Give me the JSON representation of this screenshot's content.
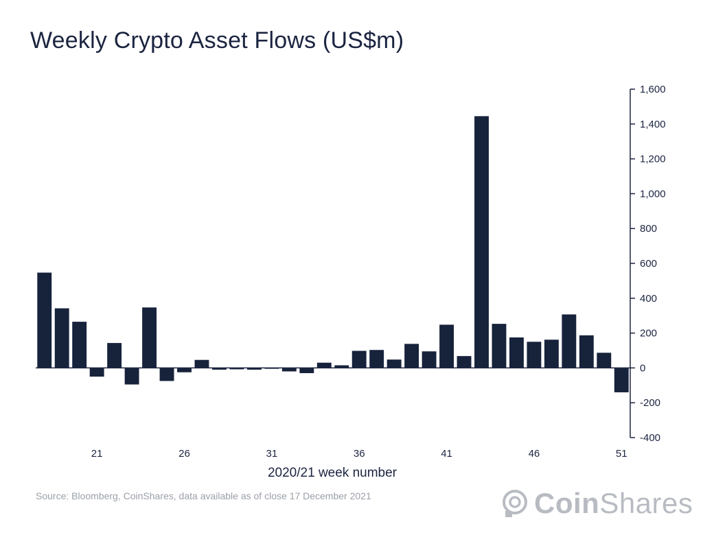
{
  "title": "Weekly Crypto Asset Flows (US$m)",
  "source": "Source: Bloomberg, CoinShares, data available as of close 17 December 2021",
  "brand": {
    "bold": "Coin",
    "regular": "Shares",
    "logo_icon": "coinshares-logo-icon"
  },
  "colors": {
    "bar": "#17223b",
    "axis": "#1b2440",
    "text": "#1b2440",
    "muted": "#9a9fa8"
  },
  "chart_data": {
    "type": "bar",
    "title": "Weekly Crypto Asset Flows (US$m)",
    "xlabel": "2020/21 week number",
    "ylabel": "",
    "ylim": [
      -400,
      1600
    ],
    "yticks": [
      -400,
      -200,
      0,
      200,
      400,
      600,
      800,
      1000,
      1200,
      1400,
      1600
    ],
    "ytick_labels": [
      "-400",
      "-200",
      "0",
      "200",
      "400",
      "600",
      "800",
      "1,000",
      "1,200",
      "1,400",
      "1,600"
    ],
    "y_axis_side": "right",
    "grid": false,
    "categories": [
      18,
      19,
      20,
      21,
      22,
      23,
      24,
      25,
      26,
      27,
      28,
      29,
      30,
      31,
      32,
      33,
      34,
      35,
      36,
      37,
      38,
      39,
      40,
      41,
      42,
      43,
      44,
      45,
      46,
      47,
      48,
      49,
      50,
      51
    ],
    "xtick_labels": [
      "21",
      "26",
      "31",
      "36",
      "41",
      "46",
      "51"
    ],
    "xtick_positions": [
      21,
      26,
      31,
      36,
      41,
      46,
      51
    ],
    "values": [
      547,
      342,
      265,
      -50,
      143,
      -95,
      347,
      -75,
      -25,
      46,
      -10,
      -8,
      -10,
      -5,
      -20,
      -30,
      30,
      15,
      98,
      103,
      48,
      138,
      95,
      248,
      68,
      1445,
      253,
      175,
      150,
      162,
      307,
      187,
      87,
      -140
    ]
  }
}
